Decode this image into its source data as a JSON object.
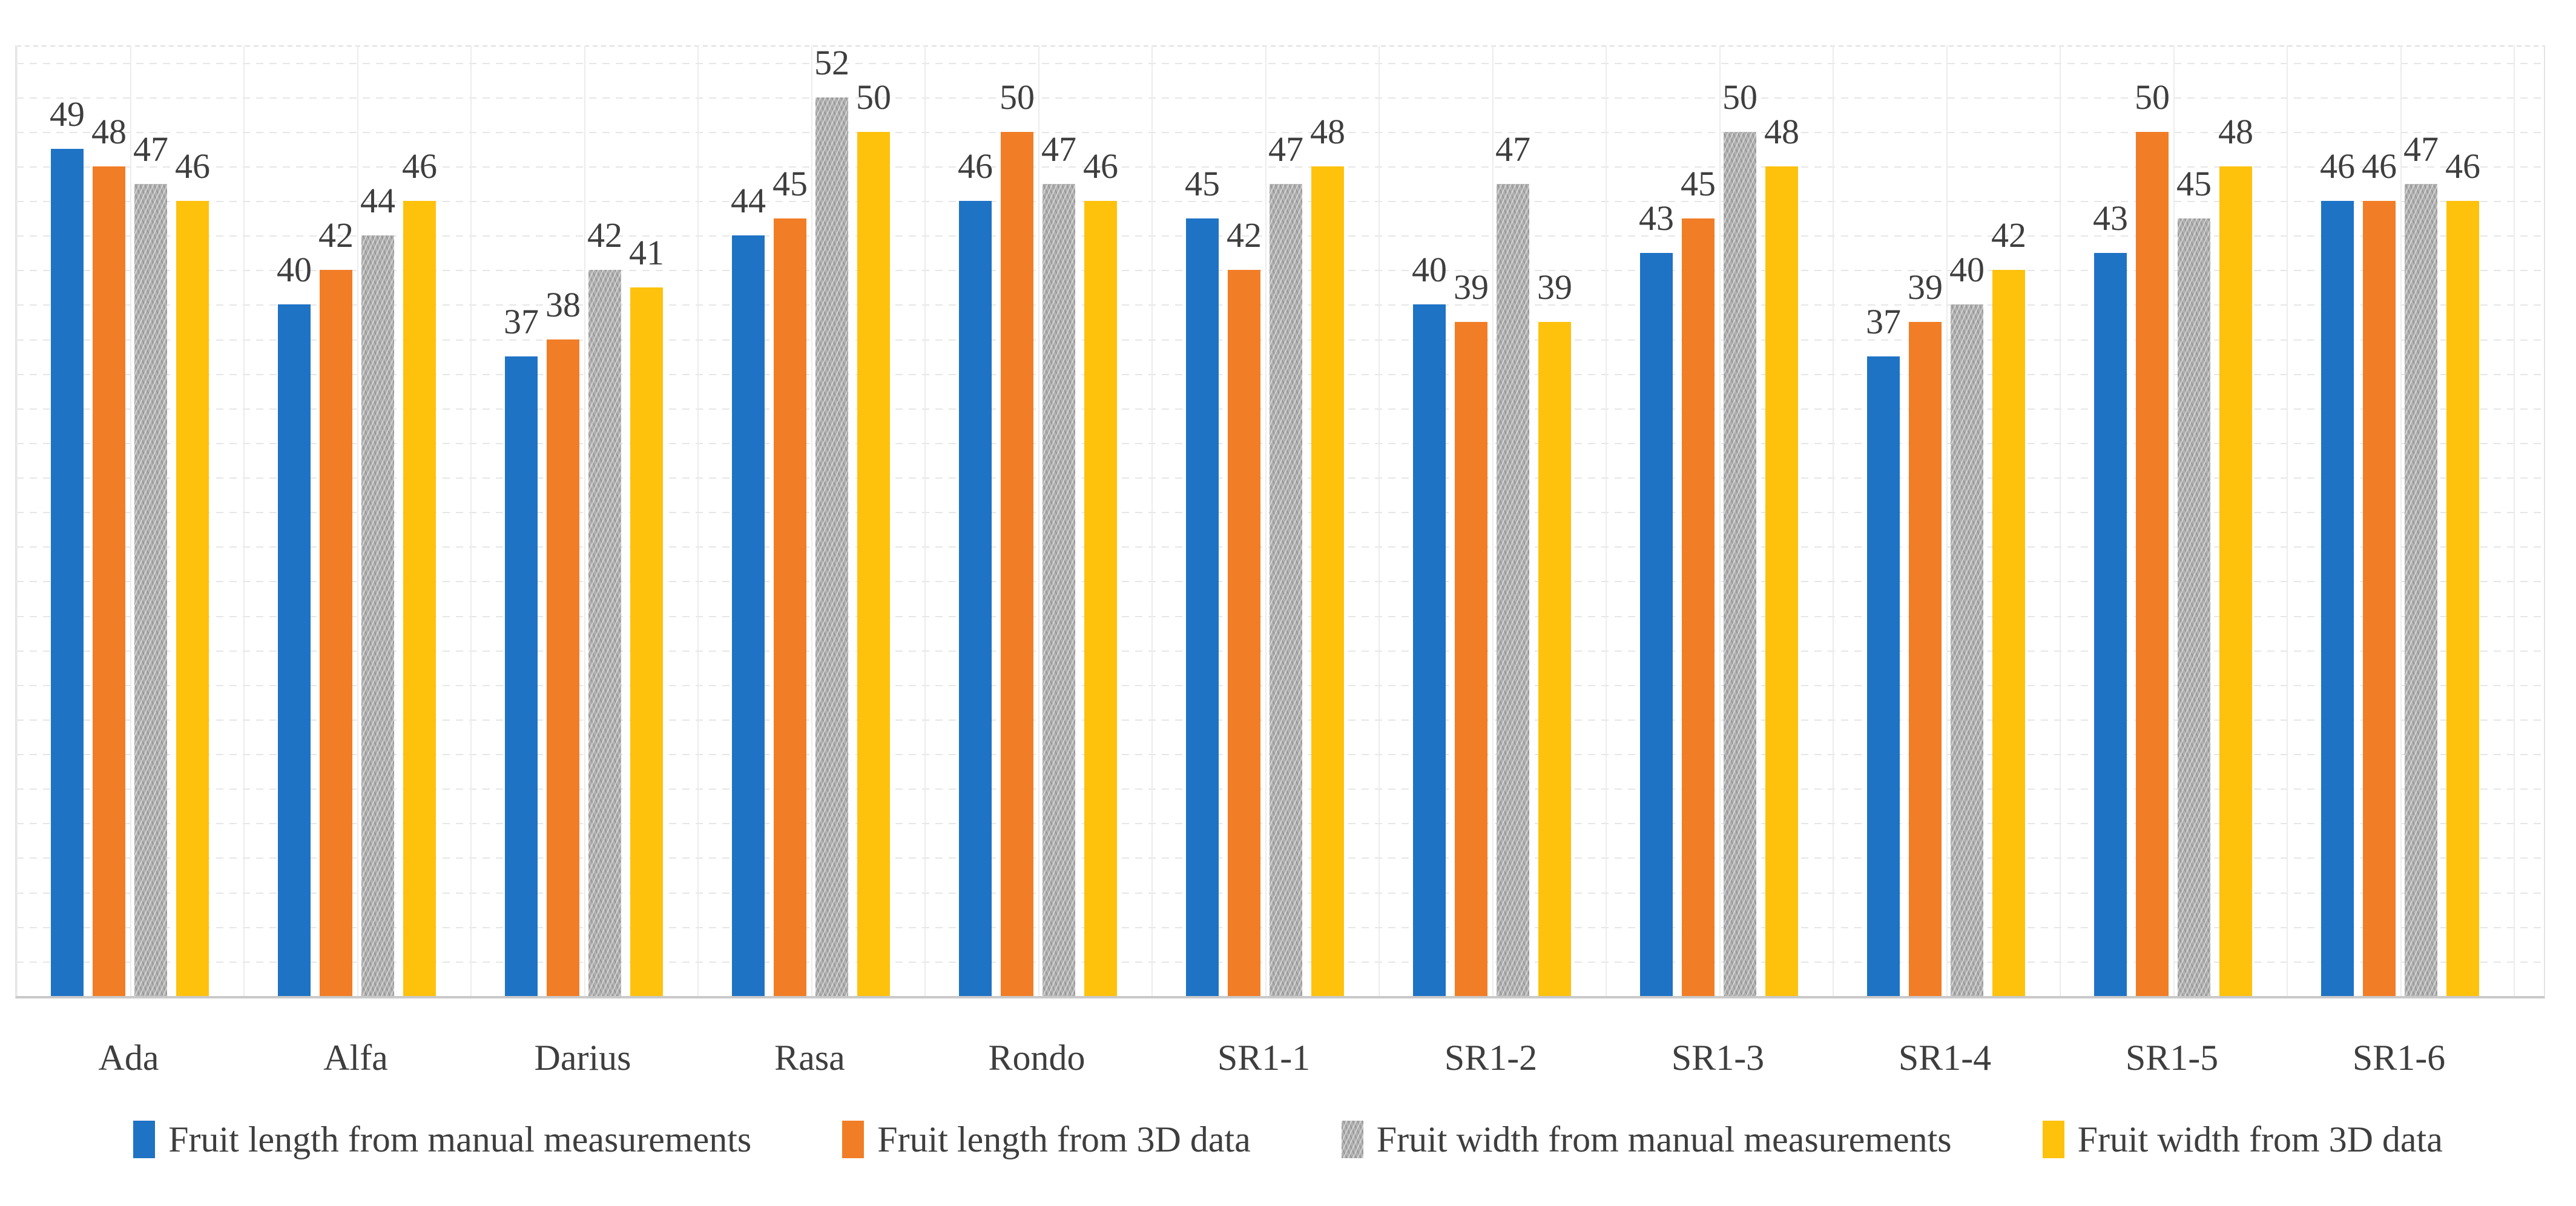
{
  "figure": {
    "background": "#FFFFFF",
    "text_color": "#3E3E3E",
    "gridline_color": "#E6E6E6",
    "axis_line_color": "#C9C9C9"
  },
  "chart_data": {
    "type": "bar",
    "categories": [
      "Ada",
      "Alfa",
      "Darius",
      "Rasa",
      "Rondo",
      "SR1-1",
      "SR1-2",
      "SR1-3",
      "SR1-4",
      "SR1-5",
      "SR1-6"
    ],
    "series": [
      {
        "name": "Fruit length from manual measurements",
        "color": "#1E73C5",
        "texture": "solid",
        "values": [
          49,
          40,
          37,
          44,
          46,
          45,
          40,
          43,
          37,
          43,
          46
        ]
      },
      {
        "name": "Fruit length from 3D data",
        "color": "#F17D26",
        "texture": "solid",
        "values": [
          48,
          42,
          38,
          45,
          50,
          42,
          39,
          45,
          39,
          50,
          46
        ]
      },
      {
        "name": "Fruit width from manual measurements",
        "color": "#B0B0B0",
        "texture": "crosshatch",
        "values": [
          47,
          44,
          42,
          52,
          47,
          47,
          47,
          50,
          40,
          45,
          47
        ]
      },
      {
        "name": "Fruit width from 3D data",
        "color": "#FEC20D",
        "texture": "solid",
        "values": [
          46,
          46,
          41,
          50,
          46,
          48,
          39,
          48,
          42,
          48,
          46
        ]
      }
    ],
    "ylim": [
      0,
      55
    ],
    "y_axis_labels_visible": false,
    "data_labels": true,
    "gridlines": {
      "horizontal_step": 2,
      "vertical": "category-half-pitch",
      "style": "dashed-light"
    },
    "legend_position": "bottom"
  }
}
